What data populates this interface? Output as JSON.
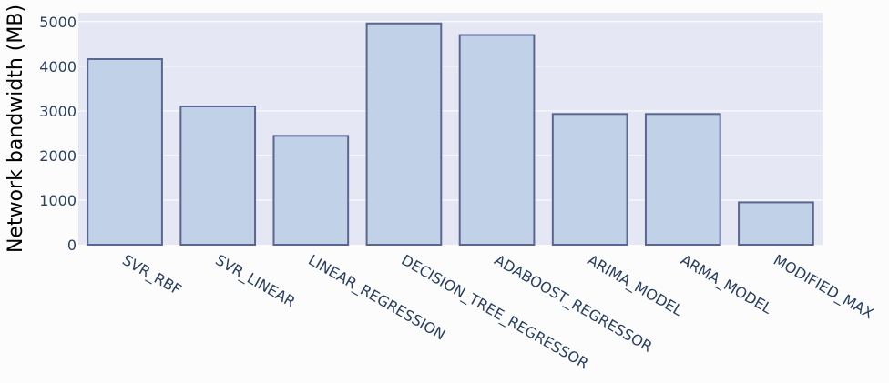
{
  "chart_data": {
    "type": "bar",
    "categories": [
      "SVR_RBF",
      "SVR_LINEAR",
      "LINEAR_REGRESSION",
      "DECISION_TREE_REGRESSOR",
      "ADABOOST_REGRESSOR",
      "ARIMA_MODEL",
      "ARMA_MODEL",
      "MODIFIED_MAX"
    ],
    "values": [
      4160,
      3100,
      2440,
      4960,
      4700,
      2930,
      2930,
      950
    ],
    "title": "",
    "xlabel": "",
    "ylabel": "Network bandwidth (MB)",
    "ylim": [
      0,
      5200
    ],
    "yticks": [
      0,
      1000,
      2000,
      3000,
      4000,
      5000
    ],
    "grid": true,
    "legend": "none",
    "colors": {
      "plot_background": "#e5e8f4",
      "bar_fill": "#c1d1e7",
      "bar_stroke": "#5b6690",
      "grid": "#ffffff",
      "tick_text": "#2a3f5f"
    }
  }
}
